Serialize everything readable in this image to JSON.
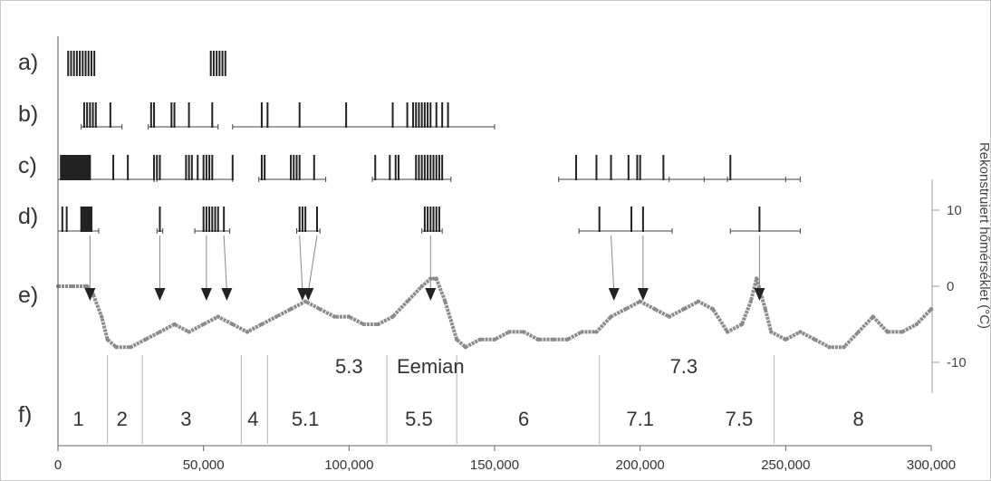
{
  "chart_data": {
    "type": "line",
    "x_ticks": [
      0,
      50000,
      100000,
      150000,
      200000,
      250000,
      300000
    ],
    "x_tick_labels": [
      "0",
      "50,000",
      "100,000",
      "150,000",
      "200,000",
      "250,000",
      "300,000"
    ],
    "xlim": [
      0,
      300000
    ],
    "ylabel": "Rekonstruiert hőmérséklet (°C)",
    "y_ticks": [
      10,
      0,
      -10
    ],
    "y_tick_labels": [
      "10",
      "0",
      "-10"
    ],
    "ylim": [
      -14,
      14
    ],
    "row_labels": [
      "a)",
      "b)",
      "c)",
      "d)",
      "e)",
      "f)"
    ],
    "series_color": "#8a8a8a",
    "event_rows": [
      {
        "label": "a)",
        "events": [
          3500,
          4500,
          5500,
          6500,
          7500,
          8500,
          9500,
          10500,
          11500,
          12500,
          52500,
          53500,
          54500,
          55500,
          56500,
          57500
        ],
        "uncertainty": []
      },
      {
        "label": "b)",
        "events": [
          9000,
          10000,
          11000,
          12000,
          13000,
          18000,
          32000,
          33000,
          39000,
          40000,
          45000,
          53000,
          70000,
          72000,
          83000,
          99000,
          115000,
          120000,
          122000,
          123000,
          124000,
          125000,
          126000,
          127000,
          128000,
          130000,
          132000,
          134000
        ],
        "uncertainty": [
          [
            8000,
            22000
          ],
          [
            31000,
            55000
          ],
          [
            60000,
            150000
          ]
        ]
      },
      {
        "label": "c)",
        "events": [
          1000,
          1500,
          2000,
          2500,
          3000,
          3500,
          4000,
          4500,
          5000,
          5500,
          6000,
          6500,
          7000,
          7500,
          8000,
          8500,
          9000,
          9500,
          10000,
          10500,
          11000,
          19000,
          24000,
          33000,
          34000,
          35000,
          44000,
          45000,
          46000,
          48000,
          50000,
          51000,
          52000,
          53000,
          60000,
          70000,
          71000,
          80000,
          81000,
          82000,
          83000,
          88000,
          109000,
          114000,
          116000,
          117000,
          123000,
          124000,
          125000,
          126000,
          127000,
          128000,
          129000,
          130000,
          131000,
          132000,
          178000,
          185000,
          190000,
          196000,
          199000,
          200000,
          208000,
          231000
        ],
        "uncertainty": [
          [
            0,
            33000
          ],
          [
            34000,
            60000
          ],
          [
            69000,
            92000
          ],
          [
            108000,
            135000
          ],
          [
            172000,
            222000
          ],
          [
            210000,
            250000
          ],
          [
            230000,
            255000
          ]
        ]
      },
      {
        "label": "d)",
        "events": [
          1500,
          3000,
          8000,
          8500,
          9000,
          9500,
          10000,
          10500,
          11000,
          11500,
          35000,
          50000,
          51000,
          52000,
          53000,
          54000,
          55000,
          57000,
          83000,
          84000,
          85000,
          89000,
          126000,
          127000,
          128000,
          129000,
          130000,
          131000,
          186000,
          197000,
          201000,
          241000
        ],
        "uncertainty": [
          [
            0,
            14000
          ],
          [
            34000,
            36000
          ],
          [
            47000,
            59000
          ],
          [
            82000,
            90000
          ],
          [
            125000,
            132000
          ],
          [
            179000,
            211000
          ],
          [
            231000,
            255000
          ]
        ]
      }
    ],
    "temperature_series": {
      "x": [
        0,
        5000,
        10000,
        12000,
        15000,
        17000,
        20000,
        25000,
        30000,
        35000,
        40000,
        45000,
        50000,
        55000,
        60000,
        65000,
        70000,
        75000,
        80000,
        85000,
        90000,
        95000,
        100000,
        105000,
        110000,
        115000,
        120000,
        125000,
        128000,
        130000,
        133000,
        137000,
        140000,
        145000,
        150000,
        155000,
        160000,
        165000,
        170000,
        175000,
        180000,
        185000,
        190000,
        195000,
        200000,
        205000,
        210000,
        215000,
        220000,
        225000,
        230000,
        235000,
        238000,
        240000,
        243000,
        245000,
        250000,
        255000,
        260000,
        265000,
        270000,
        275000,
        280000,
        285000,
        290000,
        295000,
        300000
      ],
      "y": [
        0,
        0,
        0,
        -1,
        -4,
        -7,
        -8,
        -8,
        -7,
        -6,
        -5,
        -6,
        -5,
        -4,
        -5,
        -6,
        -5,
        -4,
        -3,
        -2,
        -3,
        -4,
        -4,
        -5,
        -5,
        -4,
        -2,
        0,
        1,
        1,
        -2,
        -7,
        -8,
        -7,
        -7,
        -6,
        -6,
        -7,
        -7,
        -7,
        -6,
        -6,
        -4,
        -3,
        -2,
        -3,
        -4,
        -3,
        -2,
        -3,
        -6,
        -5,
        -2,
        1,
        -3,
        -6,
        -7,
        -6,
        -7,
        -8,
        -8,
        -6,
        -4,
        -6,
        -6,
        -5,
        -3
      ]
    },
    "marker_arrows": [
      {
        "from_x": 11000,
        "to_x": 11000
      },
      {
        "from_x": 35000,
        "to_x": 35000
      },
      {
        "from_x": 51000,
        "to_x": 51000
      },
      {
        "from_x": 57000,
        "to_x": 58000
      },
      {
        "from_x": 83000,
        "to_x": 84000
      },
      {
        "from_x": 89000,
        "to_x": 86000
      },
      {
        "from_x": 128000,
        "to_x": 128000
      },
      {
        "from_x": 190000,
        "to_x": 191000
      },
      {
        "from_x": 201000,
        "to_x": 201000
      },
      {
        "from_x": 241000,
        "to_x": 241000
      }
    ],
    "annotations": [
      {
        "text": "5.3",
        "x": 100000,
        "y": -10
      },
      {
        "text": "Eemian",
        "x": 128000,
        "y": -10
      },
      {
        "text": "7.3",
        "x": 215000,
        "y": -10
      }
    ],
    "stage_boundaries": [
      17000,
      29000,
      63000,
      72000,
      113000,
      137000,
      186000,
      246000
    ],
    "stages": [
      {
        "label": "1",
        "x": 7000
      },
      {
        "label": "2",
        "x": 22000
      },
      {
        "label": "3",
        "x": 44000
      },
      {
        "label": "4",
        "x": 67000
      },
      {
        "label": "5.1",
        "x": 85000
      },
      {
        "label": "5.5",
        "x": 124000
      },
      {
        "label": "6",
        "x": 160000
      },
      {
        "label": "7.1",
        "x": 200000
      },
      {
        "label": "7.5",
        "x": 234000
      },
      {
        "label": "8",
        "x": 275000
      }
    ],
    "grid": false
  }
}
